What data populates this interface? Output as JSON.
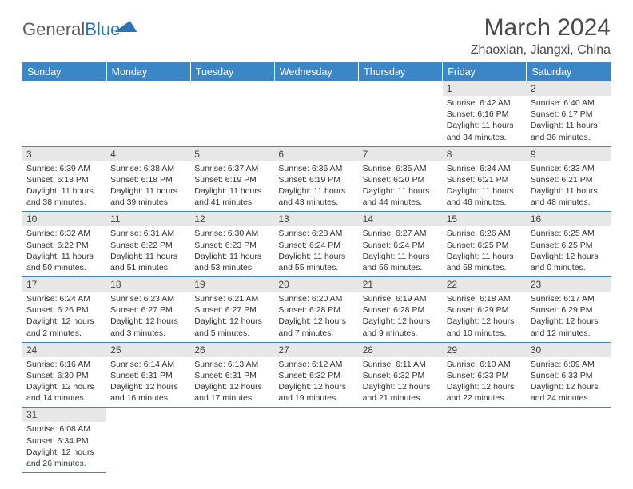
{
  "logo": {
    "word1": "General",
    "word2": "Blue"
  },
  "title": "March 2024",
  "location": "Zhaoxian, Jiangxi, China",
  "day_headers": [
    "Sunday",
    "Monday",
    "Tuesday",
    "Wednesday",
    "Thursday",
    "Friday",
    "Saturday"
  ],
  "colors": {
    "header_bg": "#3b86c6",
    "header_text": "#ffffff",
    "daynum_bg": "#e7e7e7",
    "border": "#3b86c6",
    "logo_blue": "#2a72b5",
    "text": "#333333",
    "title_color": "#4a4a4a"
  },
  "weeks": [
    [
      null,
      null,
      null,
      null,
      null,
      {
        "n": "1",
        "sr": "Sunrise: 6:42 AM",
        "ss": "Sunset: 6:16 PM",
        "dl": "Daylight: 11 hours and 34 minutes."
      },
      {
        "n": "2",
        "sr": "Sunrise: 6:40 AM",
        "ss": "Sunset: 6:17 PM",
        "dl": "Daylight: 11 hours and 36 minutes."
      }
    ],
    [
      {
        "n": "3",
        "sr": "Sunrise: 6:39 AM",
        "ss": "Sunset: 6:18 PM",
        "dl": "Daylight: 11 hours and 38 minutes."
      },
      {
        "n": "4",
        "sr": "Sunrise: 6:38 AM",
        "ss": "Sunset: 6:18 PM",
        "dl": "Daylight: 11 hours and 39 minutes."
      },
      {
        "n": "5",
        "sr": "Sunrise: 6:37 AM",
        "ss": "Sunset: 6:19 PM",
        "dl": "Daylight: 11 hours and 41 minutes."
      },
      {
        "n": "6",
        "sr": "Sunrise: 6:36 AM",
        "ss": "Sunset: 6:19 PM",
        "dl": "Daylight: 11 hours and 43 minutes."
      },
      {
        "n": "7",
        "sr": "Sunrise: 6:35 AM",
        "ss": "Sunset: 6:20 PM",
        "dl": "Daylight: 11 hours and 44 minutes."
      },
      {
        "n": "8",
        "sr": "Sunrise: 6:34 AM",
        "ss": "Sunset: 6:21 PM",
        "dl": "Daylight: 11 hours and 46 minutes."
      },
      {
        "n": "9",
        "sr": "Sunrise: 6:33 AM",
        "ss": "Sunset: 6:21 PM",
        "dl": "Daylight: 11 hours and 48 minutes."
      }
    ],
    [
      {
        "n": "10",
        "sr": "Sunrise: 6:32 AM",
        "ss": "Sunset: 6:22 PM",
        "dl": "Daylight: 11 hours and 50 minutes."
      },
      {
        "n": "11",
        "sr": "Sunrise: 6:31 AM",
        "ss": "Sunset: 6:22 PM",
        "dl": "Daylight: 11 hours and 51 minutes."
      },
      {
        "n": "12",
        "sr": "Sunrise: 6:30 AM",
        "ss": "Sunset: 6:23 PM",
        "dl": "Daylight: 11 hours and 53 minutes."
      },
      {
        "n": "13",
        "sr": "Sunrise: 6:28 AM",
        "ss": "Sunset: 6:24 PM",
        "dl": "Daylight: 11 hours and 55 minutes."
      },
      {
        "n": "14",
        "sr": "Sunrise: 6:27 AM",
        "ss": "Sunset: 6:24 PM",
        "dl": "Daylight: 11 hours and 56 minutes."
      },
      {
        "n": "15",
        "sr": "Sunrise: 6:26 AM",
        "ss": "Sunset: 6:25 PM",
        "dl": "Daylight: 11 hours and 58 minutes."
      },
      {
        "n": "16",
        "sr": "Sunrise: 6:25 AM",
        "ss": "Sunset: 6:25 PM",
        "dl": "Daylight: 12 hours and 0 minutes."
      }
    ],
    [
      {
        "n": "17",
        "sr": "Sunrise: 6:24 AM",
        "ss": "Sunset: 6:26 PM",
        "dl": "Daylight: 12 hours and 2 minutes."
      },
      {
        "n": "18",
        "sr": "Sunrise: 6:23 AM",
        "ss": "Sunset: 6:27 PM",
        "dl": "Daylight: 12 hours and 3 minutes."
      },
      {
        "n": "19",
        "sr": "Sunrise: 6:21 AM",
        "ss": "Sunset: 6:27 PM",
        "dl": "Daylight: 12 hours and 5 minutes."
      },
      {
        "n": "20",
        "sr": "Sunrise: 6:20 AM",
        "ss": "Sunset: 6:28 PM",
        "dl": "Daylight: 12 hours and 7 minutes."
      },
      {
        "n": "21",
        "sr": "Sunrise: 6:19 AM",
        "ss": "Sunset: 6:28 PM",
        "dl": "Daylight: 12 hours and 9 minutes."
      },
      {
        "n": "22",
        "sr": "Sunrise: 6:18 AM",
        "ss": "Sunset: 6:29 PM",
        "dl": "Daylight: 12 hours and 10 minutes."
      },
      {
        "n": "23",
        "sr": "Sunrise: 6:17 AM",
        "ss": "Sunset: 6:29 PM",
        "dl": "Daylight: 12 hours and 12 minutes."
      }
    ],
    [
      {
        "n": "24",
        "sr": "Sunrise: 6:16 AM",
        "ss": "Sunset: 6:30 PM",
        "dl": "Daylight: 12 hours and 14 minutes."
      },
      {
        "n": "25",
        "sr": "Sunrise: 6:14 AM",
        "ss": "Sunset: 6:31 PM",
        "dl": "Daylight: 12 hours and 16 minutes."
      },
      {
        "n": "26",
        "sr": "Sunrise: 6:13 AM",
        "ss": "Sunset: 6:31 PM",
        "dl": "Daylight: 12 hours and 17 minutes."
      },
      {
        "n": "27",
        "sr": "Sunrise: 6:12 AM",
        "ss": "Sunset: 6:32 PM",
        "dl": "Daylight: 12 hours and 19 minutes."
      },
      {
        "n": "28",
        "sr": "Sunrise: 6:11 AM",
        "ss": "Sunset: 6:32 PM",
        "dl": "Daylight: 12 hours and 21 minutes."
      },
      {
        "n": "29",
        "sr": "Sunrise: 6:10 AM",
        "ss": "Sunset: 6:33 PM",
        "dl": "Daylight: 12 hours and 22 minutes."
      },
      {
        "n": "30",
        "sr": "Sunrise: 6:09 AM",
        "ss": "Sunset: 6:33 PM",
        "dl": "Daylight: 12 hours and 24 minutes."
      }
    ],
    [
      {
        "n": "31",
        "sr": "Sunrise: 6:08 AM",
        "ss": "Sunset: 6:34 PM",
        "dl": "Daylight: 12 hours and 26 minutes."
      },
      null,
      null,
      null,
      null,
      null,
      null
    ]
  ]
}
